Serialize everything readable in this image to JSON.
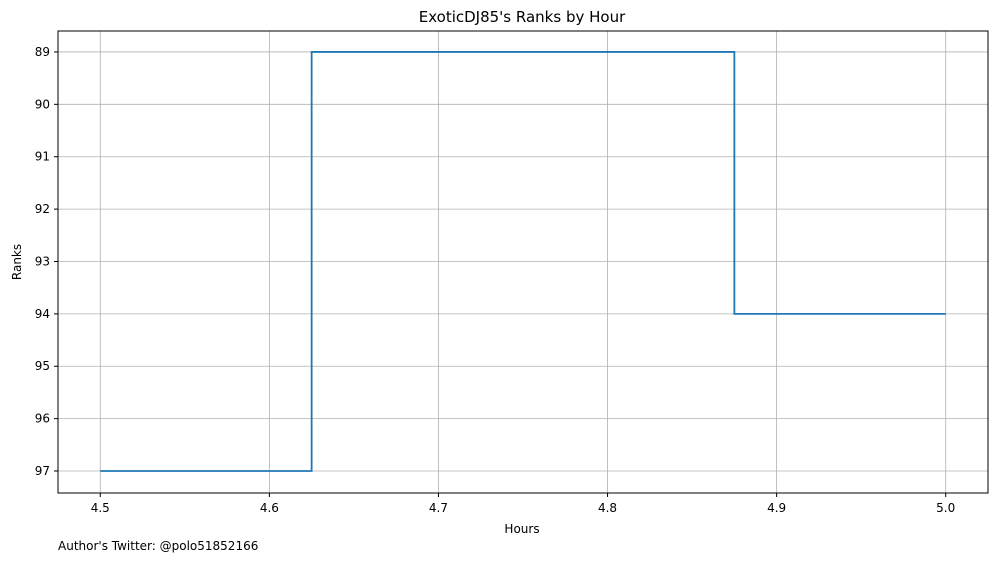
{
  "chart_data": {
    "type": "line",
    "title": "ExoticDJ85's Ranks by Hour",
    "xlabel": "Hours",
    "ylabel": "Ranks",
    "footnote": "Author's Twitter: @polo51852166",
    "xlim": [
      4.475,
      5.025
    ],
    "ylim": [
      97.42,
      88.6
    ],
    "y_inverted": true,
    "xticks": [
      4.5,
      4.6,
      4.7,
      4.8,
      4.9,
      5.0
    ],
    "xtick_labels": [
      "4.5",
      "4.6",
      "4.7",
      "4.8",
      "4.9",
      "5.0"
    ],
    "yticks": [
      89,
      90,
      91,
      92,
      93,
      94,
      95,
      96,
      97
    ],
    "ytick_labels": [
      "89",
      "90",
      "91",
      "92",
      "93",
      "94",
      "95",
      "96",
      "97"
    ],
    "grid": true,
    "step": "post",
    "series": [
      {
        "color": "#1f77b4",
        "x": [
          4.5,
          4.625,
          4.875,
          5.0
        ],
        "y": [
          97,
          89,
          94,
          94
        ]
      }
    ]
  }
}
